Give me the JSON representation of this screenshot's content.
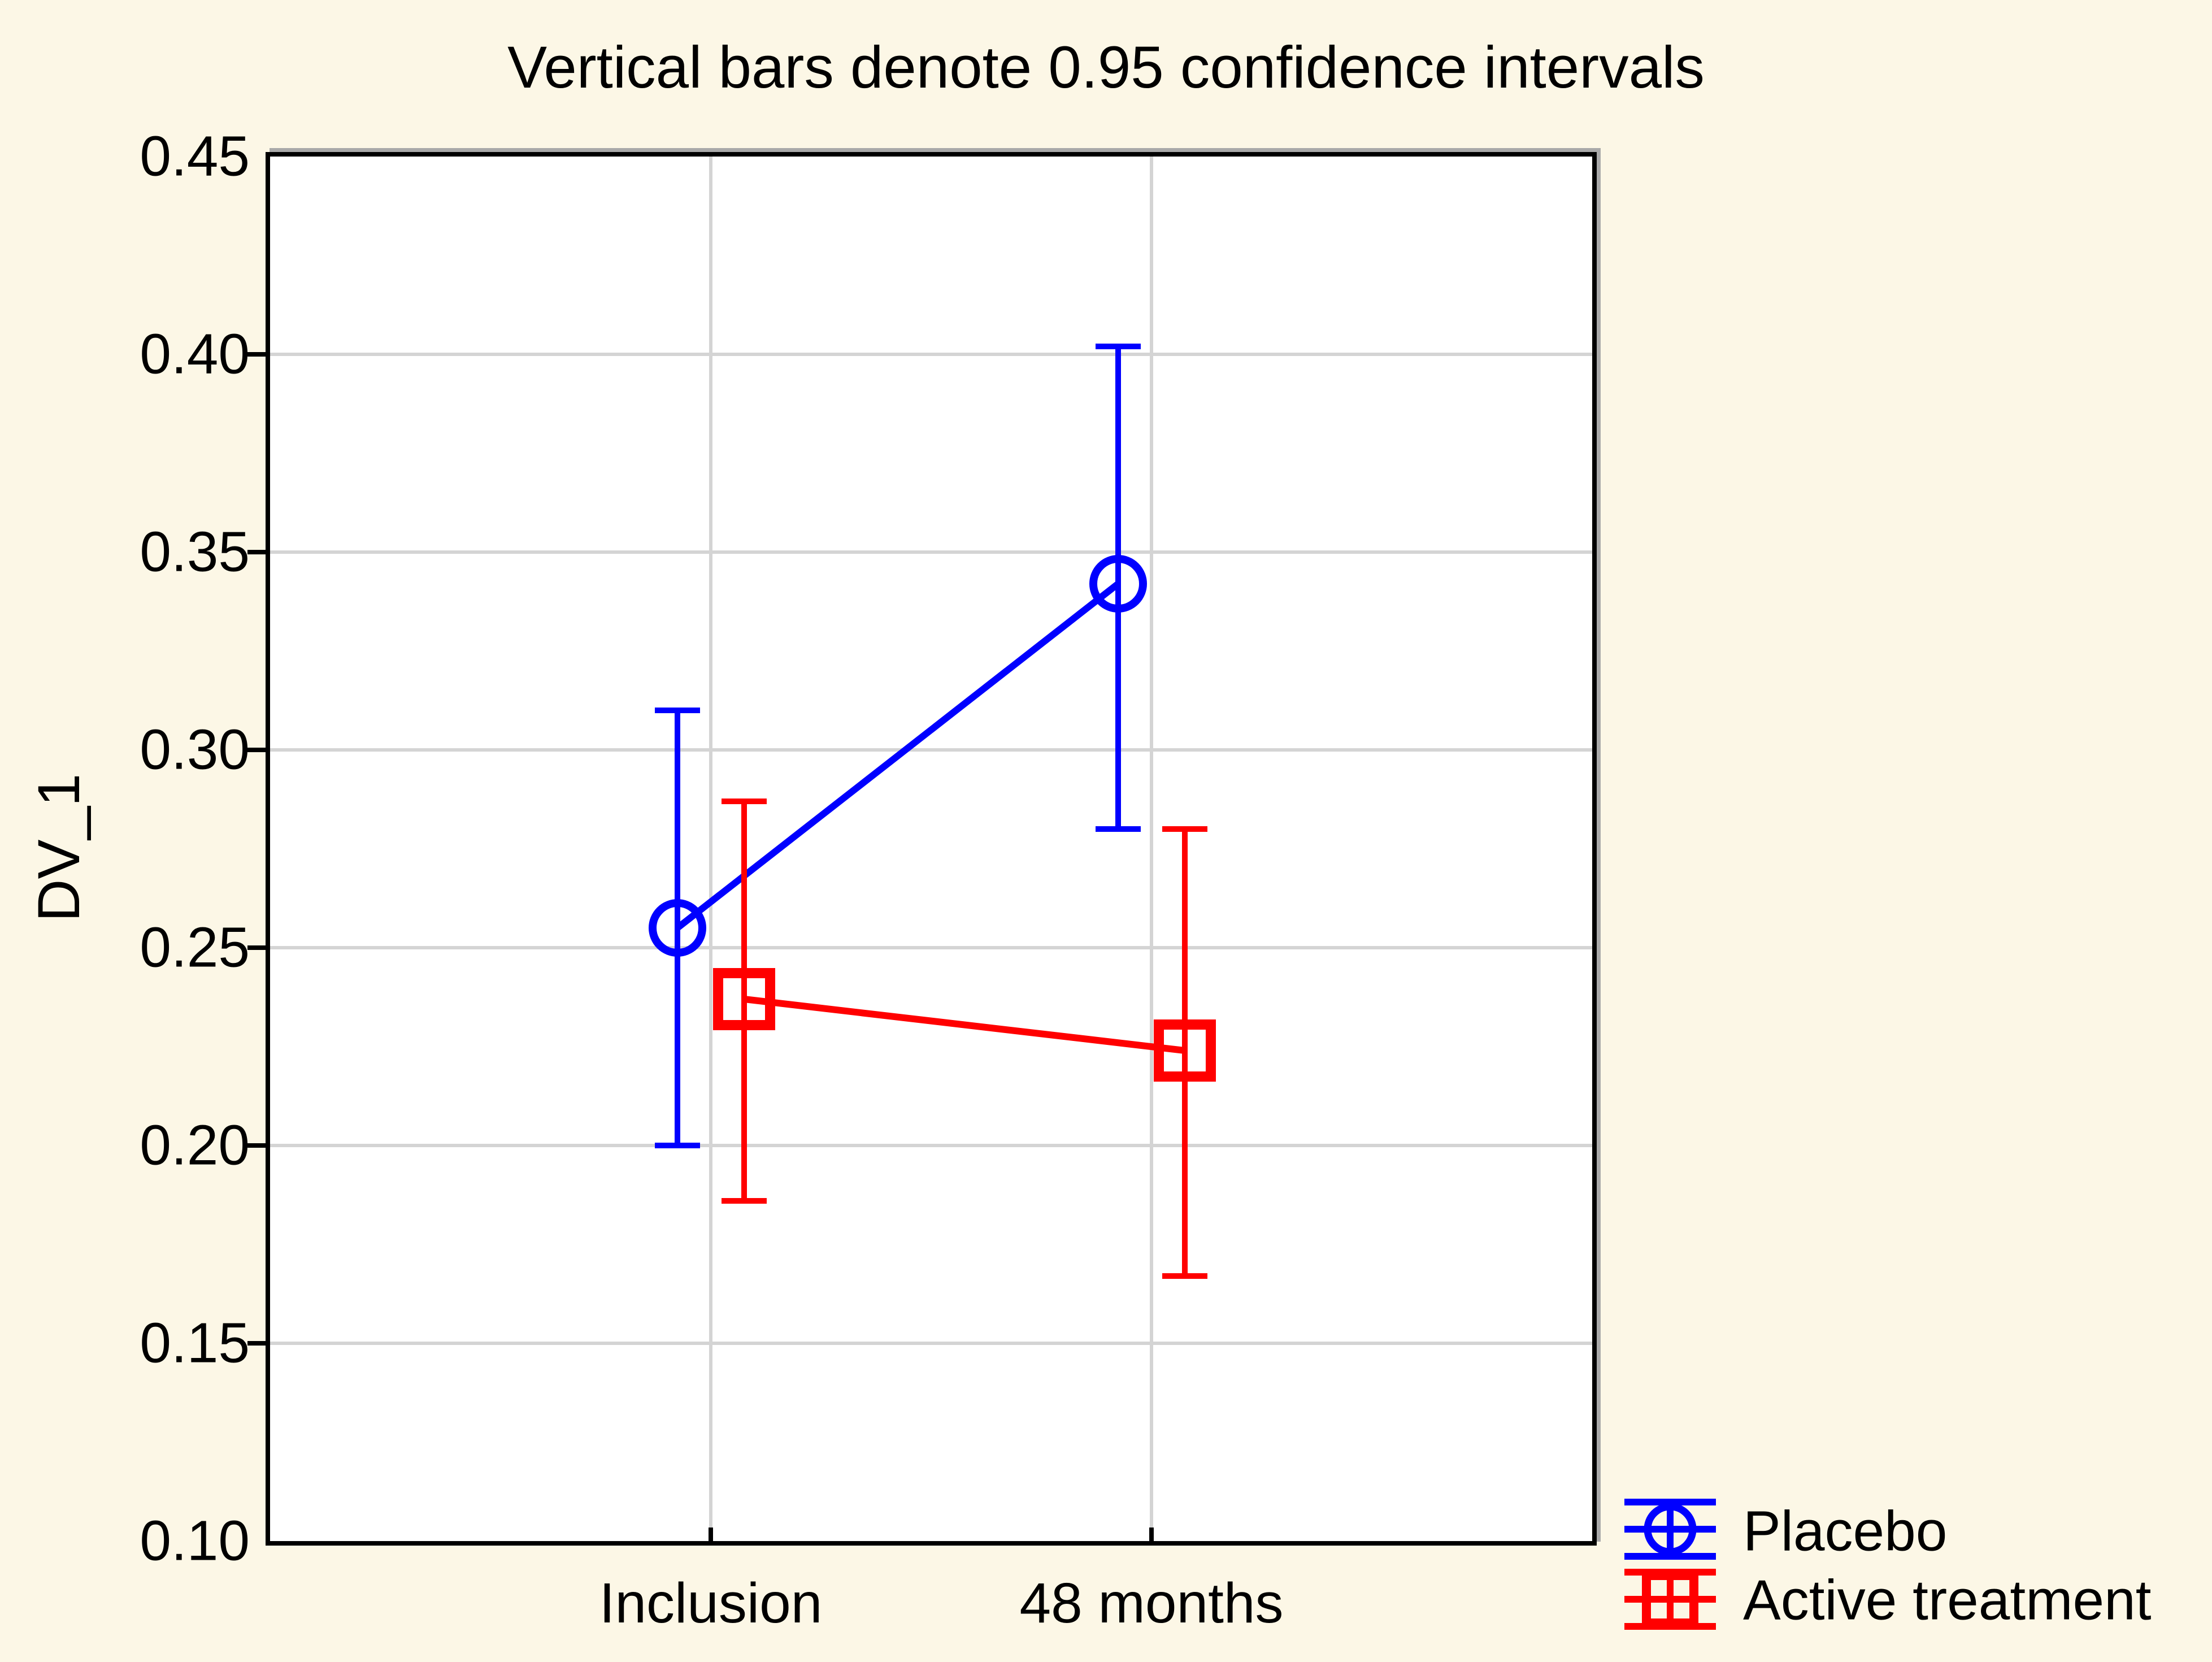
{
  "title": "Vertical bars denote 0.95 confidence intervals",
  "y_axis": {
    "label": "DV_1",
    "ticks": [
      "0.45",
      "0.40",
      "0.35",
      "0.30",
      "0.25",
      "0.20",
      "0.15",
      "0.10"
    ]
  },
  "x_axis": {
    "categories": [
      "Inclusion",
      "48 months"
    ]
  },
  "legend": [
    {
      "label": "Placebo",
      "color": "#0000FF",
      "marker": "open-circle"
    },
    {
      "label": "Active treatment",
      "color": "#FF0000",
      "marker": "open-square"
    }
  ],
  "colors": {
    "background": "#FCF7E6",
    "plot_background": "#FFFFFF",
    "frame": "#000000",
    "grid": "#D4D4D4",
    "text": "#000000",
    "placebo": "#0000FF",
    "active_treatment": "#FF0000"
  },
  "chart_data": {
    "type": "line",
    "title": "Vertical bars denote 0.95 confidence intervals",
    "xlabel": "",
    "ylabel": "DV_1",
    "categories": [
      "Inclusion",
      "48 months"
    ],
    "ylim": [
      0.1,
      0.45
    ],
    "yticks": [
      0.45,
      0.4,
      0.35,
      0.3,
      0.25,
      0.2,
      0.15,
      0.1
    ],
    "ytick_step": 0.05,
    "grid": true,
    "error_bars": "0.95 confidence intervals",
    "legend_position": "bottom-right",
    "series": [
      {
        "name": "Placebo",
        "color": "#0000FF",
        "marker": "open-circle",
        "offset": -1,
        "means": [
          0.255,
          0.342
        ],
        "ci_low": [
          0.2,
          0.28
        ],
        "ci_high": [
          0.31,
          0.402
        ]
      },
      {
        "name": "Active treatment",
        "color": "#FF0000",
        "marker": "open-square",
        "offset": 1,
        "means": [
          0.237,
          0.224
        ],
        "ci_low": [
          0.186,
          0.167
        ],
        "ci_high": [
          0.287,
          0.28
        ]
      }
    ]
  }
}
